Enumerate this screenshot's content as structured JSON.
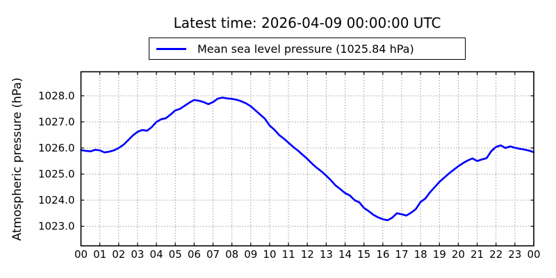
{
  "chart_data": {
    "type": "line",
    "title": "Latest time: 2026-04-09 00:00:00 UTC",
    "ylabel": "Atmospheric pressure (hPa)",
    "xlabel": "",
    "legend": {
      "label": "Mean sea level pressure (1025.84 hPa)",
      "position": "upper center above axes",
      "line_color": "#0000ff"
    },
    "latest_value_hpa": 1025.84,
    "grid": "dotted",
    "xlim": [
      0,
      24
    ],
    "ylim": [
      1022.25,
      1028.92
    ],
    "x_tick_labels": [
      "00",
      "01",
      "02",
      "03",
      "04",
      "05",
      "06",
      "07",
      "08",
      "09",
      "10",
      "11",
      "12",
      "13",
      "14",
      "15",
      "16",
      "17",
      "18",
      "19",
      "20",
      "21",
      "22",
      "23",
      "00"
    ],
    "y_ticks": [
      1023,
      1024,
      1025,
      1026,
      1027,
      1028
    ],
    "y_tick_labels": [
      "1023.0",
      "1024.0",
      "1025.0",
      "1026.0",
      "1027.0",
      "1028.0"
    ],
    "series": [
      {
        "name": "Mean sea level pressure",
        "color": "#0000ff",
        "x_start_hours": 0,
        "x_step_hours": 0.25,
        "y": [
          1025.92,
          1025.89,
          1025.87,
          1025.93,
          1025.91,
          1025.83,
          1025.86,
          1025.91,
          1026.0,
          1026.12,
          1026.3,
          1026.48,
          1026.62,
          1026.69,
          1026.66,
          1026.8,
          1027.0,
          1027.1,
          1027.14,
          1027.28,
          1027.44,
          1027.5,
          1027.62,
          1027.74,
          1027.84,
          1027.81,
          1027.76,
          1027.68,
          1027.76,
          1027.89,
          1027.93,
          1027.9,
          1027.88,
          1027.85,
          1027.79,
          1027.71,
          1027.6,
          1027.44,
          1027.28,
          1027.12,
          1026.86,
          1026.7,
          1026.5,
          1026.36,
          1026.2,
          1026.04,
          1025.9,
          1025.74,
          1025.58,
          1025.4,
          1025.24,
          1025.1,
          1024.94,
          1024.76,
          1024.56,
          1024.42,
          1024.27,
          1024.18,
          1024.0,
          1023.92,
          1023.7,
          1023.58,
          1023.44,
          1023.34,
          1023.27,
          1023.23,
          1023.33,
          1023.5,
          1023.46,
          1023.41,
          1023.52,
          1023.66,
          1023.93,
          1024.06,
          1024.3,
          1024.5,
          1024.7,
          1024.86,
          1025.02,
          1025.16,
          1025.3,
          1025.42,
          1025.52,
          1025.6,
          1025.5,
          1025.56,
          1025.61,
          1025.88,
          1026.04,
          1026.1,
          1026.0,
          1026.06,
          1026.01,
          1025.97,
          1025.94,
          1025.9,
          1025.84
        ]
      }
    ]
  },
  "colors": {
    "line": "#0000ff",
    "grid": "#666666",
    "axis": "#000000",
    "text": "#000000",
    "background": "#ffffff"
  }
}
